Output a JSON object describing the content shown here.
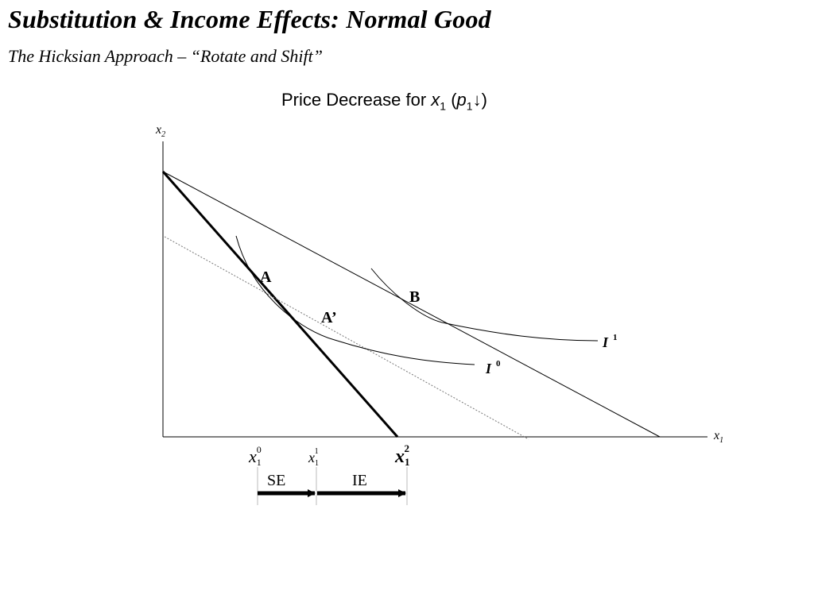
{
  "title": "Substitution & Income Effects:  Normal Good",
  "subtitle": "The Hicksian Approach – “Rotate and Shift”",
  "diagram": {
    "title_prefix": "Price Decrease for ",
    "title_var": "x",
    "title_var_sub": "1",
    "title_open": " (",
    "title_price": "p",
    "title_price_sub": "1",
    "title_arrow": "↓",
    "title_close": ")",
    "y_axis_label": "x",
    "y_axis_sub": "2",
    "x_axis_label": "x",
    "x_axis_sub": "1",
    "point_a": "A",
    "point_a_prime": "A’",
    "point_b": "B",
    "curve_i0": "I",
    "curve_i0_sup": "0",
    "curve_i1": "I",
    "curve_i1_sup": "1",
    "tick_x10": "x",
    "tick_x10_sub": "1",
    "tick_x10_sup": "0",
    "tick_x11": "x",
    "tick_x11_sub": "1",
    "tick_x11_sup": "1",
    "tick_x12": "x",
    "tick_x12_sub": "1",
    "tick_x12_sup": "2",
    "effect_se": "SE",
    "effect_ie": "IE"
  }
}
